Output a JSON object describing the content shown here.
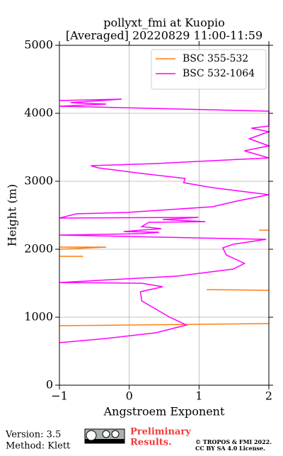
{
  "chart_data": {
    "type": "line",
    "title": [
      "pollyxt_fmi at Kuopio",
      "[Averaged] 20220829 11:00-11:59"
    ],
    "x_label": "Angstroem Exponent",
    "y_label": "Height (m)",
    "xlim": [
      -1,
      2
    ],
    "ylim": [
      0,
      5000
    ],
    "xticks": [
      {
        "value": -1,
        "label": "−1"
      },
      0,
      1,
      2
    ],
    "yticks": [
      0,
      1000,
      2000,
      3000,
      4000,
      5000
    ],
    "grid": true,
    "legend": "upper right",
    "series": [
      {
        "name": "BSC 355-532",
        "color": "#ff7f0e",
        "x": [
          -1,
          2,
          null,
          1.11,
          2,
          null,
          -1,
          -0.66,
          null,
          -1,
          -0.33,
          -1,
          null,
          1.86,
          2
        ],
        "y": [
          875,
          906,
          null,
          1406,
          1396,
          null,
          1896,
          1896,
          null,
          2031,
          2031,
          2000,
          null,
          2281,
          2281
        ]
      },
      {
        "name": "BSC 532-1064",
        "color": "#ff00ff",
        "x": [
          -1,
          -0.33,
          0.38,
          0.82,
          0.58,
          0.18,
          0.16,
          0.48,
          0.18,
          -1,
          0.68,
          1.49,
          1.65,
          1.39,
          1.34,
          1.49,
          1.96,
          -1,
          0.18,
          0.43,
          -0.08,
          0.18,
          0.46,
          0.18,
          0.28,
          1.09,
          0.48,
          0.99,
          -1,
          -0.76,
          -0.03,
          1.19,
          1.54,
          2,
          1.19,
          0.78,
          0.8,
          0.18,
          -0.45,
          -0.55,
          0.38,
          2,
          1.65,
          2,
          1.72,
          2,
          1.75,
          2,
          2,
          -1,
          -0.33,
          -0.84,
          -0.11,
          -1
        ],
        "y": [
          625,
          688,
          771,
          885,
          1000,
          1240,
          1375,
          1448,
          1500,
          1510,
          1604,
          1708,
          1792,
          1917,
          2021,
          2073,
          2146,
          2208,
          2229,
          2250,
          2260,
          2281,
          2302,
          2333,
          2396,
          2406,
          2438,
          2469,
          2458,
          2521,
          2542,
          2625,
          2708,
          2802,
          2906,
          2979,
          3042,
          3115,
          3198,
          3229,
          3260,
          3344,
          3448,
          3521,
          3625,
          3729,
          3781,
          3813,
          4031,
          4104,
          4135,
          4156,
          4208,
          4188
        ]
      }
    ]
  },
  "footer": {
    "version": "Version: 3.5",
    "method": "Method: Klett",
    "preliminary": [
      "Preliminary",
      "Results."
    ],
    "copyright": [
      "© TROPOS & FMI 2022.",
      "CC BY SA 4.0 License."
    ]
  }
}
